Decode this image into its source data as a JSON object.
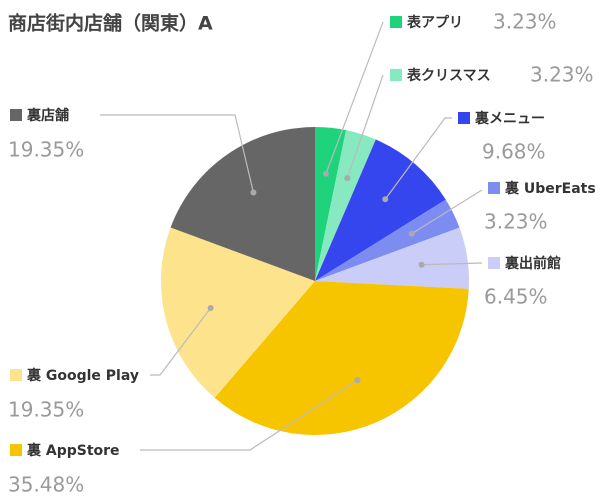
{
  "chart_data": {
    "type": "pie",
    "title": "商店街内店舗（関東）A",
    "categories": [
      "表アプリ",
      "表クリスマス",
      "裏メニュー",
      "裏 UberEats",
      "裏出前館",
      "裏 AppStore",
      "裏 Google Play",
      "裏店舗"
    ],
    "values": [
      3.23,
      3.23,
      9.68,
      3.23,
      6.45,
      35.48,
      19.35,
      19.35
    ],
    "value_labels": [
      "3.23%",
      "3.23%",
      "9.68%",
      "3.23%",
      "6.45%",
      "35.48%",
      "19.35%",
      "19.35%"
    ],
    "colors": [
      "#1fd37c",
      "#86e9bf",
      "#3646ee",
      "#7c8cf1",
      "#c9cdf8",
      "#f6c500",
      "#fde38b",
      "#666666"
    ]
  }
}
